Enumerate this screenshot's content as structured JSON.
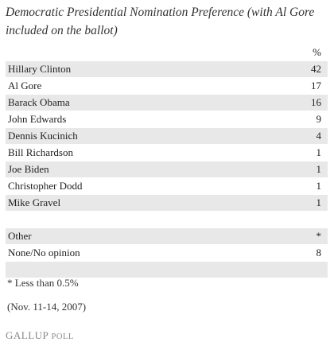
{
  "header": {
    "title": "Democratic Presidential Nomination Preference (with Al Gore included on the ballot)"
  },
  "table": {
    "column_header": "%",
    "rows": [
      [
        "Hillary Clinton",
        42
      ],
      [
        "Al Gore",
        17
      ],
      [
        "Barack Obama",
        16
      ],
      [
        "John Edwards",
        9
      ],
      [
        "Dennis Kucinich",
        4
      ],
      [
        "Bill Richardson",
        1
      ],
      [
        "Joe Biden",
        1
      ],
      [
        "Christopher Dodd",
        1
      ],
      [
        "Mike Gravel",
        1
      ]
    ],
    "other_rows": [
      [
        "Other",
        "*"
      ],
      [
        "None/No opinion",
        8
      ]
    ]
  },
  "footnote": "* Less than 0.5%",
  "date": "(Nov. 11-14, 2007)",
  "source": {
    "brand": "Gallup",
    "suffix": "Poll"
  }
}
